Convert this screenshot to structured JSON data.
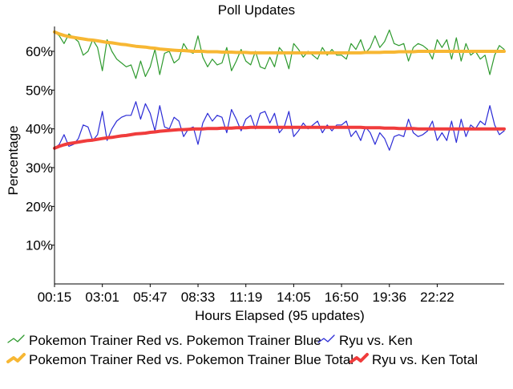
{
  "chart_data": {
    "type": "line",
    "title": "Poll Updates",
    "xlabel": "Hours Elapsed (95 updates)",
    "ylabel": "Percentage",
    "xlim": [
      0,
      94
    ],
    "ylim": [
      0,
      66
    ],
    "grid": false,
    "legend_position": "bottom",
    "x_ticks": [
      {
        "index": 0,
        "label": "00:15"
      },
      {
        "index": 10,
        "label": "03:01"
      },
      {
        "index": 20,
        "label": "05:47"
      },
      {
        "index": 30,
        "label": "08:33"
      },
      {
        "index": 40,
        "label": "11:19"
      },
      {
        "index": 50,
        "label": "14:05"
      },
      {
        "index": 60,
        "label": "16:50"
      },
      {
        "index": 70,
        "label": "19:36"
      },
      {
        "index": 80,
        "label": "22:22"
      }
    ],
    "y_ticks": [
      {
        "value": 10,
        "label": "10%"
      },
      {
        "value": 20,
        "label": "20%"
      },
      {
        "value": 30,
        "label": "30%"
      },
      {
        "value": 40,
        "label": "40%"
      },
      {
        "value": 50,
        "label": "50%"
      },
      {
        "value": 60,
        "label": "60%"
      }
    ],
    "series": [
      {
        "name": "Pokemon Trainer Red vs. Pokemon Trainer Blue",
        "color": "#2e9a2e",
        "style": "thin",
        "values": [
          65.0,
          64.0,
          62.0,
          64.5,
          63.5,
          62.5,
          59.0,
          60.0,
          63.0,
          61.0,
          55.0,
          63.0,
          60.0,
          58.0,
          57.0,
          56.0,
          56.5,
          53.0,
          57.5,
          53.5,
          56.0,
          60.5,
          54.0,
          59.5,
          60.0,
          57.0,
          58.0,
          62.0,
          60.0,
          59.5,
          64.0,
          58.5,
          56.0,
          58.0,
          56.5,
          57.0,
          61.0,
          55.0,
          57.5,
          60.5,
          57.5,
          56.5,
          60.0,
          56.0,
          55.5,
          58.5,
          56.0,
          61.0,
          59.5,
          55.5,
          62.0,
          60.5,
          58.5,
          60.0,
          59.0,
          58.0,
          61.0,
          59.0,
          60.5,
          59.0,
          59.0,
          58.0,
          62.0,
          60.5,
          63.0,
          59.5,
          61.0,
          64.0,
          61.0,
          62.5,
          65.5,
          62.0,
          61.5,
          62.0,
          57.5,
          61.0,
          62.0,
          61.5,
          60.5,
          58.0,
          63.0,
          61.0,
          63.0,
          58.0,
          63.5,
          57.5,
          62.0,
          59.0,
          60.0,
          58.0,
          59.0,
          54.0,
          59.0,
          61.5,
          60.5
        ]
      },
      {
        "name": "Ryu vs. Ken",
        "color": "#2b2bd6",
        "style": "thin",
        "values": [
          35.0,
          36.0,
          38.5,
          35.5,
          36.0,
          37.5,
          41.0,
          40.5,
          37.0,
          38.5,
          44.5,
          37.0,
          40.0,
          42.0,
          43.0,
          43.5,
          43.5,
          47.0,
          42.5,
          46.5,
          44.0,
          39.5,
          46.0,
          40.5,
          40.0,
          43.0,
          42.0,
          38.0,
          40.0,
          40.5,
          36.0,
          41.5,
          44.0,
          42.0,
          43.5,
          43.0,
          39.0,
          45.0,
          42.5,
          39.5,
          42.5,
          43.5,
          40.0,
          44.0,
          44.5,
          41.5,
          44.0,
          39.0,
          40.5,
          44.5,
          38.0,
          39.5,
          41.5,
          40.0,
          41.0,
          42.0,
          39.0,
          41.0,
          39.5,
          41.0,
          41.0,
          42.0,
          38.0,
          39.5,
          37.0,
          40.5,
          39.0,
          36.0,
          39.0,
          37.5,
          34.5,
          38.0,
          38.5,
          38.0,
          42.5,
          39.0,
          38.0,
          38.5,
          39.5,
          42.0,
          37.0,
          39.0,
          37.0,
          42.0,
          36.5,
          42.5,
          38.0,
          41.0,
          40.0,
          42.0,
          41.0,
          46.0,
          41.0,
          38.5,
          39.5
        ]
      },
      {
        "name": "Pokemon Trainer Red vs. Pokemon Trainer Blue Total",
        "color": "#f7b733",
        "style": "thick",
        "values": [
          65.0,
          64.5,
          64.1,
          63.8,
          63.6,
          63.4,
          63.2,
          63.0,
          62.9,
          62.7,
          62.5,
          62.3,
          62.2,
          62.0,
          61.8,
          61.7,
          61.5,
          61.3,
          61.2,
          61.1,
          60.9,
          60.8,
          60.6,
          60.5,
          60.4,
          60.3,
          60.2,
          60.2,
          60.1,
          60.0,
          60.0,
          60.0,
          59.9,
          59.9,
          59.9,
          59.8,
          59.8,
          59.8,
          59.7,
          59.7,
          59.7,
          59.6,
          59.6,
          59.6,
          59.6,
          59.6,
          59.6,
          59.6,
          59.6,
          59.6,
          59.6,
          59.6,
          59.6,
          59.6,
          59.6,
          59.6,
          59.6,
          59.6,
          59.6,
          59.6,
          59.6,
          59.6,
          59.6,
          59.6,
          59.6,
          59.7,
          59.7,
          59.7,
          59.7,
          59.8,
          59.8,
          59.8,
          59.9,
          59.9,
          59.9,
          59.9,
          60.0,
          60.0,
          60.0,
          60.0,
          60.0,
          60.0,
          60.0,
          60.0,
          60.0,
          60.0,
          60.0,
          60.0,
          60.0,
          60.0,
          60.0,
          60.0,
          60.0,
          60.0,
          60.0
        ]
      },
      {
        "name": "Ryu vs. Ken Total",
        "color": "#f03c3c",
        "style": "thick",
        "values": [
          35.0,
          35.5,
          35.9,
          36.2,
          36.4,
          36.6,
          36.8,
          37.0,
          37.1,
          37.3,
          37.5,
          37.7,
          37.8,
          38.0,
          38.2,
          38.3,
          38.5,
          38.7,
          38.8,
          38.9,
          39.1,
          39.2,
          39.4,
          39.5,
          39.6,
          39.7,
          39.8,
          39.8,
          39.9,
          40.0,
          40.0,
          40.0,
          40.1,
          40.1,
          40.1,
          40.2,
          40.2,
          40.2,
          40.3,
          40.3,
          40.3,
          40.4,
          40.4,
          40.4,
          40.4,
          40.4,
          40.4,
          40.4,
          40.4,
          40.4,
          40.4,
          40.4,
          40.4,
          40.4,
          40.4,
          40.4,
          40.4,
          40.4,
          40.4,
          40.4,
          40.4,
          40.4,
          40.4,
          40.4,
          40.4,
          40.3,
          40.3,
          40.3,
          40.3,
          40.2,
          40.2,
          40.2,
          40.1,
          40.1,
          40.1,
          40.1,
          40.0,
          40.0,
          40.0,
          40.0,
          40.0,
          40.0,
          40.0,
          40.0,
          40.0,
          40.0,
          40.0,
          40.0,
          40.0,
          40.0,
          40.0,
          40.0,
          40.0,
          40.0,
          40.0
        ]
      }
    ]
  }
}
